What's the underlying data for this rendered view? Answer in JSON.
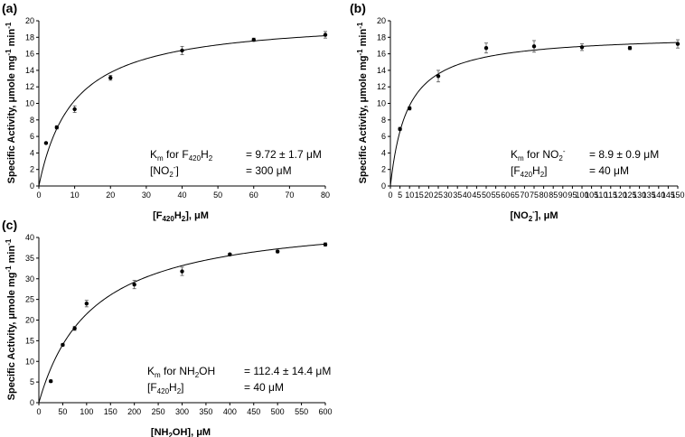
{
  "chart_data": [
    {
      "type": "scatter",
      "panel_label": "(a)",
      "xlabel": "[F420H2], μM",
      "ylabel": "Specific Activity, μmole mg-1 min-1",
      "xlim": [
        0,
        80
      ],
      "ylim": [
        0,
        20
      ],
      "xticks": [
        "0",
        "10",
        "20",
        "30",
        "40",
        "50",
        "60",
        "70",
        "80"
      ],
      "yticks": [
        "0",
        "2",
        "4",
        "6",
        "8",
        "10",
        "12",
        "14",
        "16",
        "18",
        "20"
      ],
      "grid": false,
      "series": [
        {
          "type": "scatter",
          "x": [
            2,
            5,
            10,
            20,
            40,
            60,
            80
          ],
          "y": [
            5.2,
            7.1,
            9.3,
            13.1,
            16.4,
            17.7,
            18.3
          ],
          "err": [
            0.1,
            0.2,
            0.4,
            0.3,
            0.5,
            0.2,
            0.4
          ]
        },
        {
          "type": "line",
          "model": "michaelis-menten",
          "vmax": 20.4,
          "km": 9.72
        }
      ],
      "annotation": {
        "line1_label": "Km for F420H2",
        "line1_value": "= 9.72 ± 1.7 μM",
        "line2_label": "[NO2-]",
        "line2_value": "= 300 μM"
      }
    },
    {
      "type": "scatter",
      "panel_label": "(b)",
      "xlabel": "[NO2-], μM",
      "ylabel": "Specific Activity, μmole mg-1 min-1",
      "xlim": [
        0,
        150
      ],
      "ylim": [
        0,
        20
      ],
      "xticks": [
        "0",
        "5",
        "10",
        "15",
        "20",
        "25",
        "30",
        "35",
        "40",
        "45",
        "50",
        "55",
        "60",
        "65",
        "70",
        "75",
        "80",
        "85",
        "90",
        "95",
        "100",
        "105",
        "110",
        "115",
        "120",
        "125",
        "130",
        "135",
        "140",
        "145",
        "150"
      ],
      "yticks": [
        "0",
        "2",
        "4",
        "6",
        "8",
        "10",
        "12",
        "14",
        "16",
        "18",
        "20"
      ],
      "grid": false,
      "series": [
        {
          "type": "scatter",
          "x": [
            5,
            10,
            25,
            50,
            75,
            100,
            125,
            150
          ],
          "y": [
            6.9,
            9.4,
            13.3,
            16.7,
            16.9,
            16.8,
            16.7,
            17.2
          ],
          "err": [
            0.2,
            0.2,
            0.7,
            0.6,
            0.7,
            0.4,
            0.2,
            0.5
          ]
        },
        {
          "type": "line",
          "model": "michaelis-menten",
          "vmax": 18.4,
          "km": 8.9
        }
      ],
      "annotation": {
        "line1_label": "Km for NO2-",
        "line1_value": "= 8.9 ± 0.9 μM",
        "line2_label": "[F420H2]",
        "line2_value": "= 40 μM"
      }
    },
    {
      "type": "scatter",
      "panel_label": "(c)",
      "xlabel": "[NH2OH], μM",
      "ylabel": "Specific Activity, μmole mg-1 min-1",
      "xlim": [
        0,
        600
      ],
      "ylim": [
        0,
        40
      ],
      "xticks": [
        "0",
        "50",
        "100",
        "150",
        "200",
        "250",
        "300",
        "350",
        "400",
        "450",
        "500",
        "550",
        "600"
      ],
      "yticks": [
        "0",
        "5",
        "10",
        "15",
        "20",
        "25",
        "30",
        "35",
        "40"
      ],
      "grid": false,
      "series": [
        {
          "type": "scatter",
          "x": [
            25,
            50,
            75,
            100,
            200,
            300,
            400,
            500,
            600
          ],
          "y": [
            5.2,
            14.0,
            18.0,
            24.0,
            28.6,
            31.8,
            35.9,
            36.6,
            38.3
          ],
          "err": [
            0.3,
            0.3,
            0.5,
            0.8,
            1.0,
            1.0,
            0.3,
            0.3,
            0.4
          ]
        },
        {
          "type": "line",
          "model": "michaelis-menten",
          "vmax": 45.6,
          "km": 112.4
        }
      ],
      "annotation": {
        "line1_label": "Km for NH2OH",
        "line1_value": "= 112.4 ± 14.4 μM",
        "line2_label": "[F420H2]",
        "line2_value": "= 40 μM"
      }
    }
  ]
}
